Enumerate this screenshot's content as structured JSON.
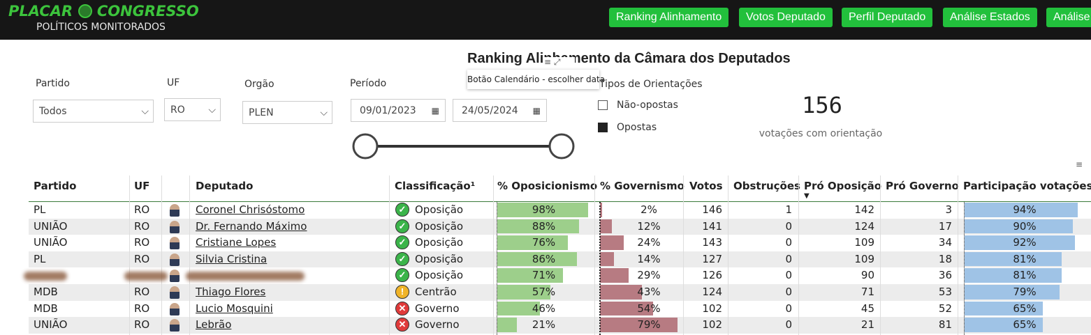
{
  "header": {
    "logo_left": "PLACAR",
    "logo_right": "CONGRESSO",
    "subtitle": "POLÍTICOS MONITORADOS",
    "nav": [
      "Ranking Alinhamento",
      "Votos Deputado",
      "Perfil Deputado",
      "Análise Estados",
      "Análise"
    ]
  },
  "title": "Ranking Alinhamento da Câmara dos Deputados",
  "tooltip": "Botão Calendário - escolher data",
  "filters": {
    "party": {
      "label": "Partido",
      "value": "Todos"
    },
    "state": {
      "label": "UF",
      "value": "RO"
    },
    "body": {
      "label": "Orgão",
      "value": "PLEN"
    },
    "period": {
      "label": "Período",
      "start": "09/01/2023",
      "end": "24/05/2024"
    }
  },
  "orientation": {
    "label": "Tipos de Orientações",
    "options": [
      "Não-opostas",
      "Opostas"
    ]
  },
  "kpi": {
    "value": "156",
    "label": "votações com orientação"
  },
  "table": {
    "columns": {
      "party": "Partido",
      "uf": "UF",
      "name": "Deputado",
      "class": "Classificação¹",
      "opposition": "% Oposicionismo",
      "government": "% Governismo",
      "votes": "Votos",
      "obstructions": "Obstruções",
      "pro_opposition": "Pró Oposição",
      "pro_government": "Pró Governo",
      "participation": "Participação votações"
    },
    "rows": [
      {
        "party": "PL",
        "uf": "RO",
        "name": "Coronel Chrisóstomo",
        "class": "Oposição",
        "opposition": {
          "value": 98,
          "label": "98%"
        },
        "government": {
          "value": 2,
          "label": "2%"
        },
        "votes": 146,
        "obstructions": 1,
        "pro_opposition": 142,
        "pro_government": 3,
        "participation": {
          "value": 94,
          "label": "94%"
        }
      },
      {
        "party": "UNIÃO",
        "uf": "RO",
        "name": "Dr. Fernando Máximo",
        "class": "Oposição",
        "opposition": {
          "value": 88,
          "label": "88%"
        },
        "government": {
          "value": 12,
          "label": "12%"
        },
        "votes": 141,
        "obstructions": 0,
        "pro_opposition": 124,
        "pro_government": 17,
        "participation": {
          "value": 90,
          "label": "90%"
        }
      },
      {
        "party": "UNIÃO",
        "uf": "RO",
        "name": "Cristiane Lopes",
        "class": "Oposição",
        "opposition": {
          "value": 76,
          "label": "76%"
        },
        "government": {
          "value": 24,
          "label": "24%"
        },
        "votes": 143,
        "obstructions": 0,
        "pro_opposition": 109,
        "pro_government": 34,
        "participation": {
          "value": 92,
          "label": "92%"
        }
      },
      {
        "party": "PL",
        "uf": "RO",
        "name": "Silvia Cristina",
        "class": "Oposição",
        "opposition": {
          "value": 86,
          "label": "86%"
        },
        "government": {
          "value": 14,
          "label": "14%"
        },
        "votes": 127,
        "obstructions": 0,
        "pro_opposition": 109,
        "pro_government": 18,
        "participation": {
          "value": 81,
          "label": "81%"
        }
      },
      {
        "party": null,
        "uf": null,
        "name": null,
        "class": "Oposição",
        "opposition": {
          "value": 71,
          "label": "71%"
        },
        "government": {
          "value": 29,
          "label": "29%"
        },
        "votes": 126,
        "obstructions": 0,
        "pro_opposition": 90,
        "pro_government": 36,
        "participation": {
          "value": 81,
          "label": "81%"
        }
      },
      {
        "party": "MDB",
        "uf": "RO",
        "name": "Thiago Flores",
        "class": "Centrão",
        "opposition": {
          "value": 57,
          "label": "57%"
        },
        "government": {
          "value": 43,
          "label": "43%"
        },
        "votes": 124,
        "obstructions": 0,
        "pro_opposition": 71,
        "pro_government": 53,
        "participation": {
          "value": 79,
          "label": "79%"
        }
      },
      {
        "party": "MDB",
        "uf": "RO",
        "name": "Lucio Mosquini",
        "class": "Governo",
        "opposition": {
          "value": 46,
          "label": "46%"
        },
        "government": {
          "value": 54,
          "label": "54%"
        },
        "votes": 102,
        "obstructions": 0,
        "pro_opposition": 45,
        "pro_government": 52,
        "participation": {
          "value": 65,
          "label": "65%"
        }
      },
      {
        "party": "UNIÃO",
        "uf": "RO",
        "name": "Lebrão",
        "class": "Governo",
        "opposition": {
          "value": 21,
          "label": "21%"
        },
        "government": {
          "value": 79,
          "label": "79%"
        },
        "votes": 102,
        "obstructions": 0,
        "pro_opposition": 21,
        "pro_government": 81,
        "participation": {
          "value": 65,
          "label": "65%"
        }
      }
    ]
  }
}
